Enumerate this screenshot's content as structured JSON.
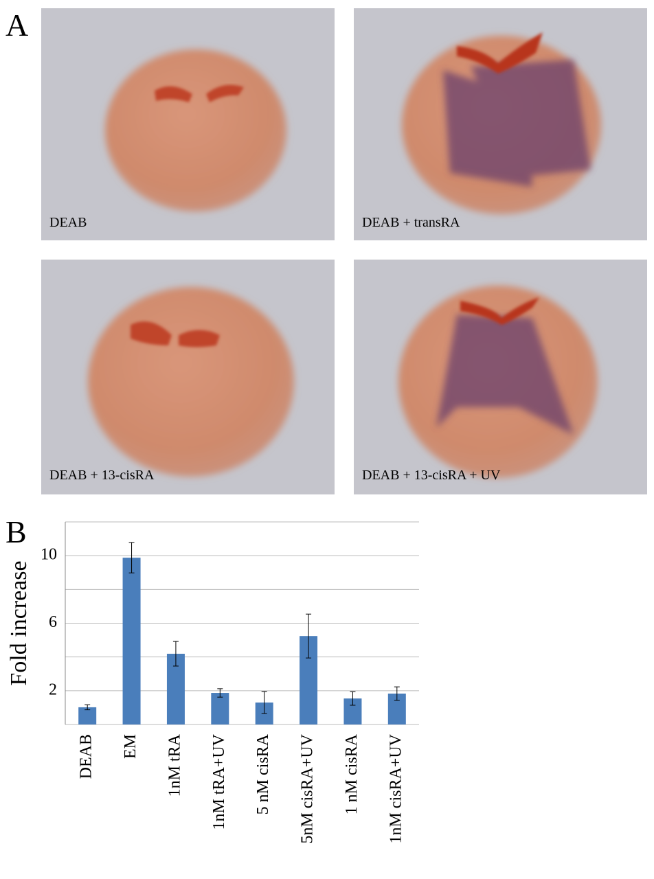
{
  "letters": {
    "a": "A",
    "b": "B"
  },
  "images": [
    {
      "label": "DEAB"
    },
    {
      "label": "DEAB + transRA"
    },
    {
      "label": "DEAB + 13-cisRA"
    },
    {
      "label": "DEAB + 13-cisRA + UV"
    }
  ],
  "chart_data": {
    "type": "bar",
    "ylabel": "Fold increase",
    "categories": [
      "DEAB",
      "EM",
      "1nM tRA",
      "1nM tRA+UV",
      "5 nM cisRA",
      "5nM cisRA+UV",
      "1 nM cisRA",
      "1nM cisRA+UV"
    ],
    "values": [
      1.02,
      9.88,
      4.19,
      1.87,
      1.3,
      5.24,
      1.54,
      1.83
    ],
    "errors": [
      0.15,
      0.9,
      0.73,
      0.25,
      0.65,
      1.3,
      0.4,
      0.4
    ],
    "color": "#4a7ebb",
    "ylim": [
      0,
      12
    ],
    "yticks": [
      2,
      6,
      10
    ],
    "minor_yticks": [
      0,
      4,
      8,
      12
    ],
    "grid": true
  }
}
